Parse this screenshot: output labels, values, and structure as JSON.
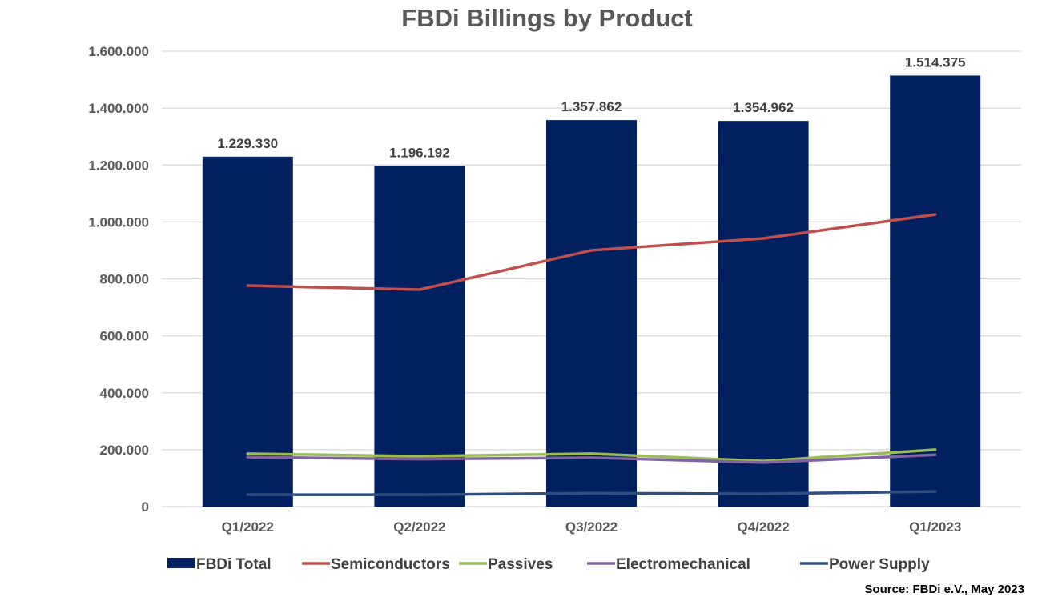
{
  "chart_data": {
    "type": "bar",
    "title": "FBDi Billings by Product",
    "xlabel": "",
    "ylabel": "",
    "ylim": [
      0,
      1600000
    ],
    "yticks": [
      0,
      200000,
      400000,
      600000,
      800000,
      1000000,
      1200000,
      1400000,
      1600000
    ],
    "ytick_labels": [
      "0",
      "200.000",
      "400.000",
      "600.000",
      "800.000",
      "1.000.000",
      "1.200.000",
      "1.400.000",
      "1.600.000"
    ],
    "grid": true,
    "legend_position": "bottom",
    "categories": [
      "Q1/2022",
      "Q2/2022",
      "Q3/2022",
      "Q4/2022",
      "Q1/2023"
    ],
    "series": [
      {
        "name": "FBDi Total",
        "type": "bar",
        "color": "#002060",
        "values": [
          1229330,
          1196192,
          1357862,
          1354962,
          1514375
        ],
        "labels": [
          "1.229.330",
          "1.196.192",
          "1.357.862",
          "1.354.962",
          "1.514.375"
        ]
      },
      {
        "name": "Semiconductors",
        "type": "line",
        "color": "#C0504D",
        "values": [
          776000,
          762000,
          900000,
          942000,
          1026000
        ]
      },
      {
        "name": "Passives",
        "type": "line",
        "color": "#9BBB59",
        "values": [
          186000,
          177000,
          186000,
          160000,
          200000
        ]
      },
      {
        "name": "Electromechanical",
        "type": "line",
        "color": "#8064A2",
        "values": [
          174000,
          167000,
          172000,
          155000,
          182000
        ]
      },
      {
        "name": "Power Supply",
        "type": "line",
        "color": "#2F4F7F",
        "values": [
          42000,
          42000,
          47000,
          45000,
          53000
        ]
      }
    ],
    "source": "Source: FBDi e.V., May 2023"
  }
}
